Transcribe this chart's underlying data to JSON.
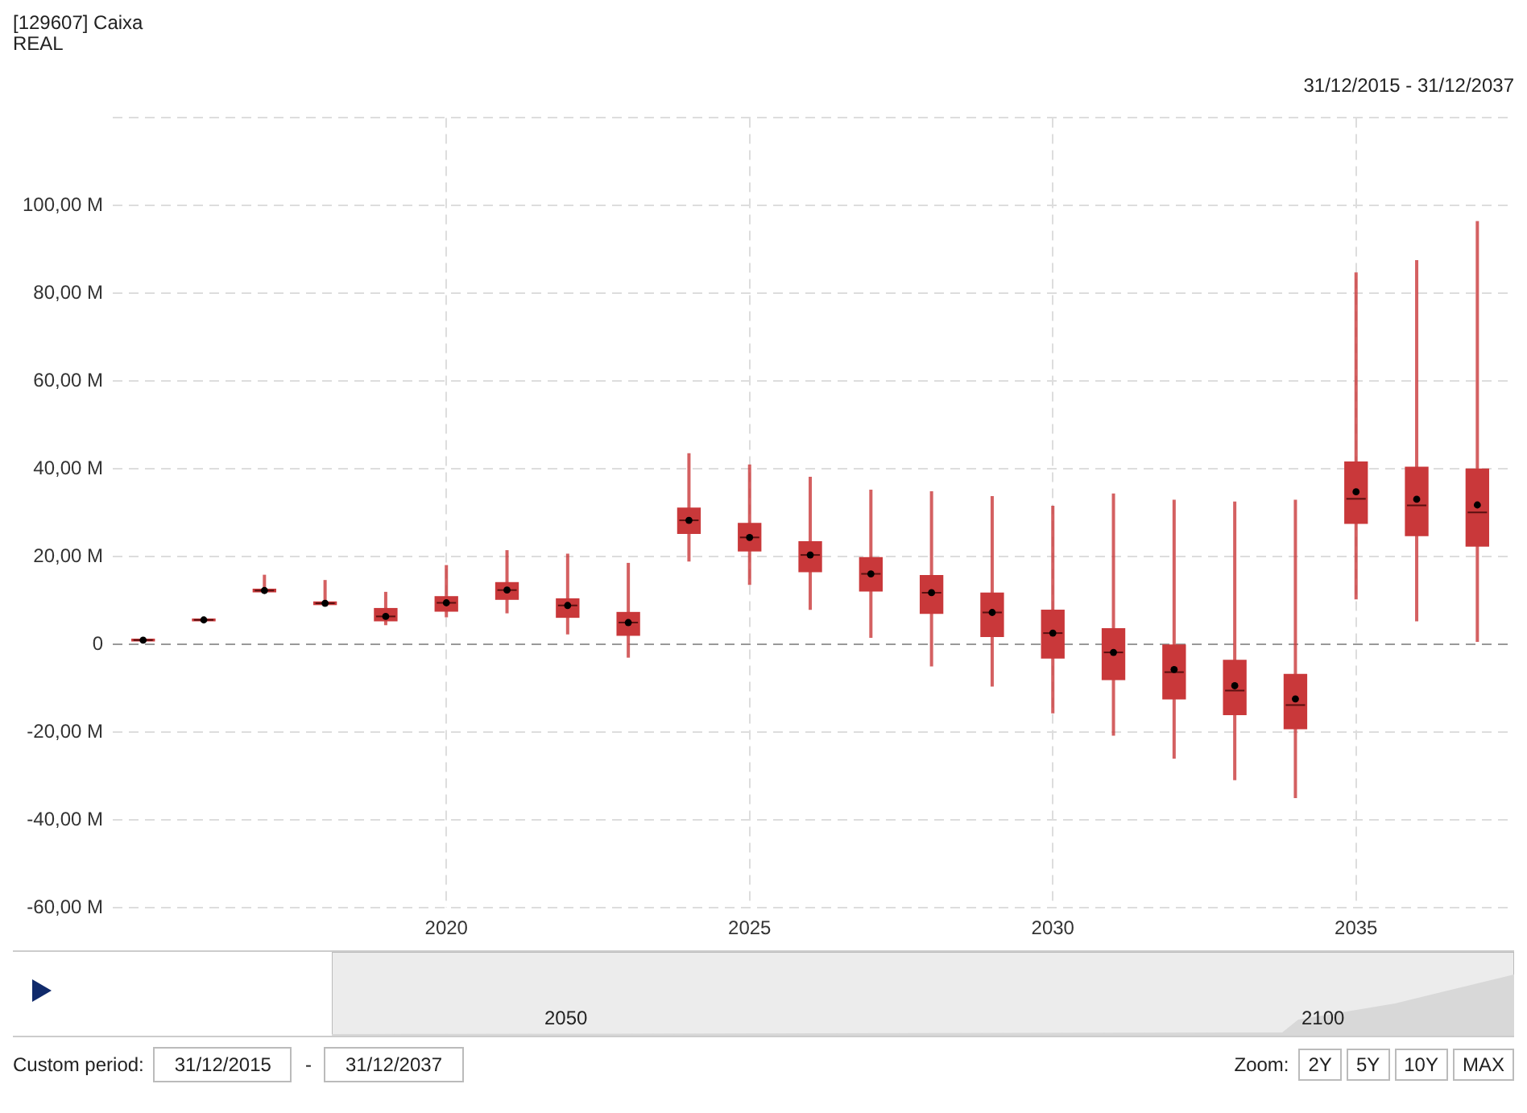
{
  "chart_data": {
    "type": "box",
    "title": "[129607] Caixa",
    "subtitle": "REAL",
    "categories": [
      null,
      null,
      null,
      null,
      null,
      "2020",
      null,
      null,
      null,
      null,
      "2025",
      null,
      null,
      null,
      null,
      "2030",
      null,
      null,
      null,
      null,
      "2035",
      null,
      null
    ],
    "color": "#c9383a",
    "boxes": [
      {
        "low": 0.6,
        "q1": 0.8,
        "median": 1,
        "q3": 1.2,
        "high": 1.4,
        "mean": 1
      },
      {
        "low": 5.2,
        "q1": 5.4,
        "median": 5.6,
        "q3": 5.8,
        "high": 6,
        "mean": 5.6
      },
      {
        "low": 11.8,
        "q1": 12,
        "median": 12.3,
        "q3": 12.6,
        "high": 15.9,
        "mean": 12.3
      },
      {
        "low": 9,
        "q1": 9.1,
        "median": 9.4,
        "q3": 9.7,
        "high": 14.7,
        "mean": 9.4
      },
      {
        "low": 4.4,
        "q1": 5.4,
        "median": 6.4,
        "q3": 8.2,
        "high": 12,
        "mean": 6.4
      },
      {
        "low": 6.2,
        "q1": 7.6,
        "median": 9.5,
        "q3": 10.9,
        "high": 18.1,
        "mean": 9.5
      },
      {
        "low": 7.1,
        "q1": 10.3,
        "median": 12.4,
        "q3": 14.1,
        "high": 21.5,
        "mean": 12.4
      },
      {
        "low": 2.3,
        "q1": 6.2,
        "median": 8.9,
        "q3": 10.4,
        "high": 20.7,
        "mean": 8.9
      },
      {
        "low": -3,
        "q1": 2.1,
        "median": 5,
        "q3": 7.3,
        "high": 18.6,
        "mean": 5
      },
      {
        "low": 18.9,
        "q1": 25.3,
        "median": 28.3,
        "q3": 31.1,
        "high": 43.6,
        "mean": 28.3
      },
      {
        "low": 13.6,
        "q1": 21.3,
        "median": 24.4,
        "q3": 27.6,
        "high": 41,
        "mean": 24.4
      },
      {
        "low": 7.9,
        "q1": 16.6,
        "median": 20.4,
        "q3": 23.4,
        "high": 38.2,
        "mean": 20.4
      },
      {
        "low": 1.5,
        "q1": 12.2,
        "median": 16.1,
        "q3": 19.8,
        "high": 35.3,
        "mean": 16.1
      },
      {
        "low": -5,
        "q1": 7.1,
        "median": 11.8,
        "q3": 15.7,
        "high": 34.9,
        "mean": 11.8
      },
      {
        "low": -9.6,
        "q1": 1.8,
        "median": 7.3,
        "q3": 11.7,
        "high": 33.8,
        "mean": 7.3
      },
      {
        "low": -15.7,
        "q1": -3.1,
        "median": 2.6,
        "q3": 7.8,
        "high": 31.6,
        "mean": 2.6
      },
      {
        "low": -20.8,
        "q1": -8,
        "median": -1.8,
        "q3": 3.6,
        "high": 34.4,
        "mean": -1.8
      },
      {
        "low": -26,
        "q1": -12.4,
        "median": -6.3,
        "q3": -0.1,
        "high": 33,
        "mean": -5.7
      },
      {
        "low": -30.9,
        "q1": -16,
        "median": -10.5,
        "q3": -3.6,
        "high": 32.6,
        "mean": -9.4
      },
      {
        "low": -35,
        "q1": -19.2,
        "median": -13.8,
        "q3": -6.8,
        "high": 33,
        "mean": -12.4
      },
      {
        "low": 10.3,
        "q1": 27.6,
        "median": 33.2,
        "q3": 41.6,
        "high": 84.8,
        "mean": 34.8
      },
      {
        "low": 5.3,
        "q1": 24.8,
        "median": 31.7,
        "q3": 40.4,
        "high": 87.6,
        "mean": 33.1
      },
      {
        "low": 0.6,
        "q1": 22.4,
        "median": 30.1,
        "q3": 40,
        "high": 96.5,
        "mean": 31.8
      }
    ],
    "ylim": [
      -60,
      120
    ],
    "yticks": [
      {
        "value": -60,
        "label": "-60,00 M"
      },
      {
        "value": -40,
        "label": "-40,00 M"
      },
      {
        "value": -20,
        "label": "-20,00 M"
      },
      0,
      {
        "value": 20,
        "label": "20,00 M"
      },
      {
        "value": 40,
        "label": "40,00 M"
      },
      {
        "value": 60,
        "label": "60,00 M"
      },
      {
        "value": 80,
        "label": "80,00 M"
      },
      {
        "value": 100,
        "label": "100,00 M"
      },
      {
        "value": 120,
        "label": null
      }
    ],
    "grid": true,
    "ref_lines": [
      {
        "axis": "y",
        "value": 0,
        "color": "#999999"
      }
    ],
    "annotations": [
      "31/12/2015 - 31/12/2037",
      "Custom period:",
      "31/12/2015",
      "-",
      "31/12/2037",
      "Zoom:",
      "2Y",
      "5Y",
      "10Y",
      "MAX",
      "2050",
      "2100"
    ]
  }
}
